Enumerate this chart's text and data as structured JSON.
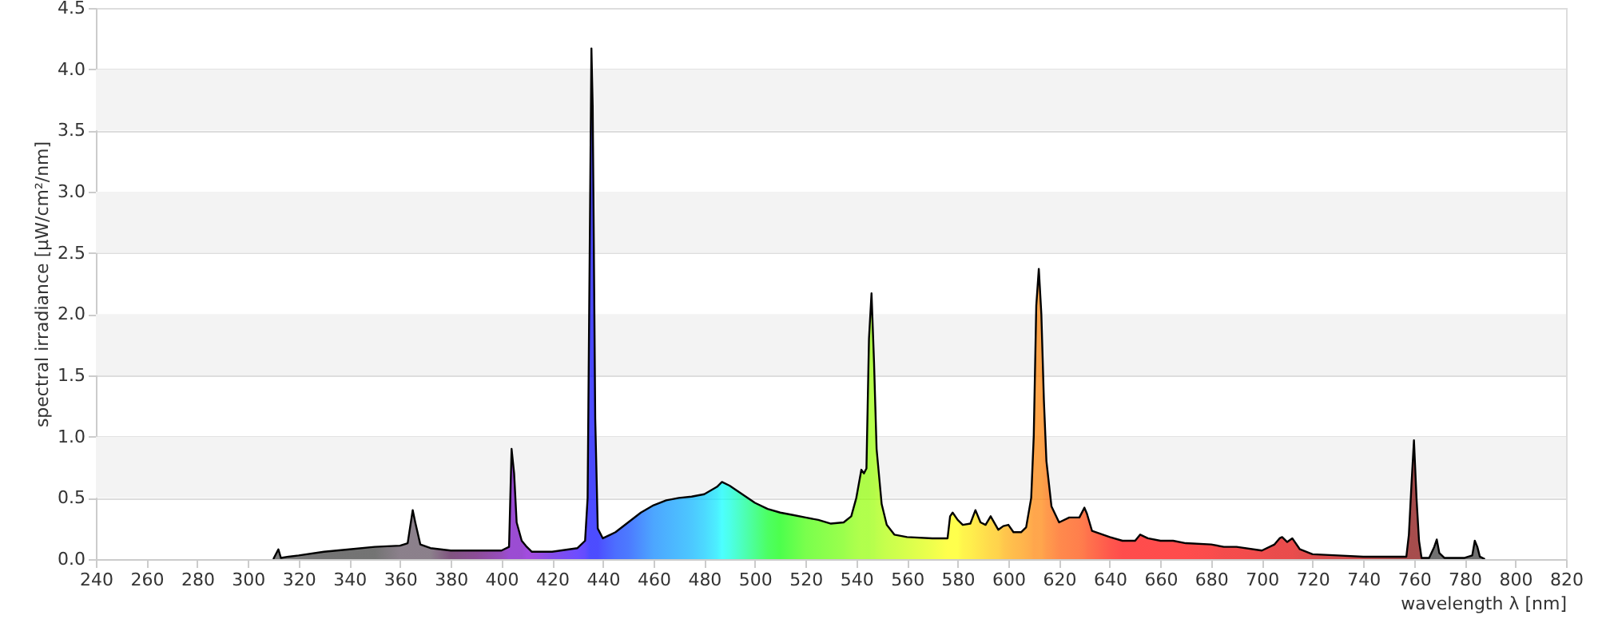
{
  "chart_data": {
    "type": "area",
    "xlabel": "wavelength λ [nm]",
    "ylabel": "spectral irradiance [µW/cm²/nm]",
    "xlim": [
      240,
      820
    ],
    "xticks": [
      240,
      260,
      280,
      300,
      320,
      340,
      360,
      380,
      400,
      420,
      440,
      460,
      480,
      500,
      520,
      540,
      560,
      580,
      600,
      620,
      640,
      660,
      680,
      700,
      720,
      740,
      760,
      780,
      800,
      820
    ],
    "ylim": [
      0,
      4.5
    ],
    "yticks": [
      {
        "value": 0,
        "label": "0.0"
      },
      0.5,
      {
        "value": 1,
        "label": "1.0"
      },
      1.5,
      {
        "value": 2,
        "label": "2.0"
      },
      2.5,
      {
        "value": 3,
        "label": "3.0"
      },
      3.5,
      {
        "value": 4,
        "label": "4.0"
      },
      4.5
    ],
    "grid": "y",
    "bands": [
      {
        "axis": "y",
        "from": 0.5,
        "to": 1,
        "color": "#f3f3f3"
      },
      {
        "axis": "y",
        "from": 1.5,
        "to": 2,
        "color": "#f3f3f3"
      },
      {
        "axis": "y",
        "from": 2.5,
        "to": 3,
        "color": "#f3f3f3"
      },
      {
        "axis": "y",
        "from": 3.5,
        "to": 4,
        "color": "#f3f3f3"
      }
    ],
    "series": [
      {
        "color": "#000000",
        "x": [
          310,
          312,
          313,
          316,
          320,
          330,
          340,
          350,
          360,
          363,
          365,
          366,
          368,
          372,
          380,
          390,
          400,
          403,
          404,
          405,
          406,
          408,
          410,
          412,
          420,
          430,
          433,
          434,
          435,
          435.5,
          436,
          437,
          438,
          440,
          445,
          450,
          455,
          460,
          465,
          470,
          475,
          480,
          485,
          487,
          490,
          495,
          500,
          505,
          510,
          515,
          520,
          525,
          530,
          535,
          538,
          540,
          542,
          543,
          544,
          545,
          546,
          547,
          548,
          550,
          552,
          555,
          560,
          570,
          576,
          577,
          578,
          580,
          582,
          585,
          587,
          589,
          591,
          593,
          596,
          598,
          600,
          602,
          605,
          607,
          609,
          610,
          611,
          612,
          613,
          614,
          615,
          617,
          620,
          624,
          628,
          630,
          631,
          633,
          640,
          645,
          650,
          652,
          655,
          660,
          665,
          670,
          680,
          685,
          690,
          700,
          705,
          707,
          708,
          710,
          712,
          715,
          720,
          730,
          740,
          750,
          757,
          758,
          759,
          760,
          761,
          762,
          763,
          766,
          768,
          769,
          770,
          772,
          780,
          783,
          784,
          785,
          786,
          788
        ],
        "values": [
          0,
          0.08,
          0.01,
          0.02,
          0.03,
          0.06,
          0.08,
          0.1,
          0.11,
          0.13,
          0.4,
          0.3,
          0.12,
          0.09,
          0.07,
          0.07,
          0.07,
          0.1,
          0.9,
          0.7,
          0.3,
          0.15,
          0.1,
          0.06,
          0.06,
          0.09,
          0.15,
          0.5,
          2.95,
          4.17,
          3.7,
          1.15,
          0.25,
          0.17,
          0.22,
          0.3,
          0.38,
          0.44,
          0.48,
          0.5,
          0.51,
          0.53,
          0.59,
          0.63,
          0.6,
          0.53,
          0.46,
          0.41,
          0.38,
          0.36,
          0.34,
          0.32,
          0.29,
          0.3,
          0.35,
          0.5,
          0.73,
          0.7,
          0.74,
          1.8,
          2.17,
          1.6,
          0.9,
          0.45,
          0.28,
          0.2,
          0.18,
          0.17,
          0.17,
          0.35,
          0.38,
          0.32,
          0.28,
          0.29,
          0.4,
          0.3,
          0.28,
          0.35,
          0.24,
          0.27,
          0.28,
          0.22,
          0.22,
          0.26,
          0.5,
          1,
          2.07,
          2.37,
          2,
          1.3,
          0.8,
          0.43,
          0.3,
          0.34,
          0.34,
          0.42,
          0.37,
          0.23,
          0.18,
          0.15,
          0.15,
          0.2,
          0.17,
          0.15,
          0.15,
          0.13,
          0.12,
          0.1,
          0.1,
          0.07,
          0.12,
          0.17,
          0.18,
          0.14,
          0.17,
          0.08,
          0.04,
          0.03,
          0.02,
          0.02,
          0.02,
          0.2,
          0.6,
          0.97,
          0.5,
          0.15,
          0.01,
          0.01,
          0.1,
          0.16,
          0.05,
          0.01,
          0.01,
          0.03,
          0.15,
          0.1,
          0.02,
          0
        ],
        "colors": [
          "#444444",
          "#444444",
          "#444444",
          "#444444",
          "#404040",
          "#383838",
          "#383838",
          "#383838",
          "#5a4a5a",
          "#5a4a5a",
          "#5a4a5a",
          "#5a4a5a",
          "#5a4a5a",
          "#5a4a5a",
          "#4a0a4a",
          "#5a006a",
          "#6a00a0",
          "#7000c0",
          "#7000c0",
          "#7000c0",
          "#7000c0",
          "#7000c0",
          "#7a00d0",
          "#7a00d0",
          "#5000e0",
          "#3000ff",
          "#2000ff",
          "#1000ff",
          "#0000ff",
          "#0000ff",
          "#0000ff",
          "#0000ff",
          "#0000ff",
          "#0010ff",
          "#0030ff",
          "#0040ff",
          "#0060ff",
          "#0080ff",
          "#0090ff",
          "#00a0ff",
          "#00b0ff",
          "#00c8ff",
          "#00e8ff",
          "#00ffff",
          "#00ffe0",
          "#00ffa0",
          "#00ff60",
          "#00ff20",
          "#00ff00",
          "#20ff00",
          "#40ff00",
          "#50ff00",
          "#60ff00",
          "#70ff00",
          "#80ff00",
          "#88ff00",
          "#90ff00",
          "#90ff00",
          "#90ff00",
          "#90ff00",
          "#98ff00",
          "#98ff00",
          "#a0ff00",
          "#a8ff00",
          "#b0ff00",
          "#b8ff00",
          "#c8ff00",
          "#e8ff00",
          "#ffff00",
          "#ffff00",
          "#ffff00",
          "#ffff00",
          "#fff000",
          "#ffe800",
          "#ffe000",
          "#ffd800",
          "#ffd000",
          "#ffc800",
          "#ffc000",
          "#ffb000",
          "#ffa800",
          "#ffa000",
          "#ff9800",
          "#ff9000",
          "#ff8800",
          "#ff8000",
          "#ff8000",
          "#ff8000",
          "#ff8000",
          "#ff7800",
          "#ff7000",
          "#ff6800",
          "#ff5800",
          "#ff5000",
          "#ff4800",
          "#ff4000",
          "#ff3800",
          "#ff3000",
          "#ff1000",
          "#ff0000",
          "#ff0000",
          "#ff0000",
          "#ff0000",
          "#ff0000",
          "#ff0000",
          "#ff0000",
          "#f80000",
          "#f00000",
          "#f00000",
          "#e80000",
          "#e00000",
          "#e00000",
          "#e00000",
          "#e00000",
          "#e00000",
          "#d80000",
          "#d00000",
          "#c00000",
          "#b00000",
          "#900000",
          "#800000",
          "#800000",
          "#800000",
          "#800000",
          "#800000",
          "#800000",
          "#700000",
          "#333333",
          "#333333",
          "#333333",
          "#333333",
          "#333333",
          "#333333",
          "#333333",
          "#333333",
          "#333333",
          "#333333",
          "#333333"
        ]
      }
    ]
  }
}
